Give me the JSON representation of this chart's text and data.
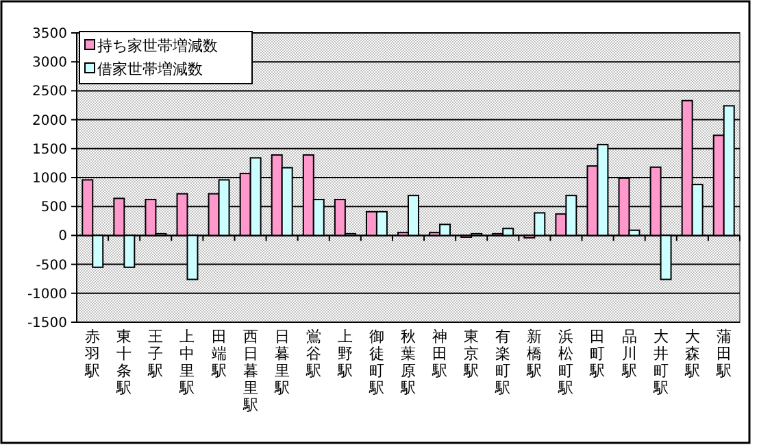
{
  "chart_data": {
    "type": "bar",
    "categories": [
      "赤羽駅",
      "東十条駅",
      "王子駅",
      "上中里駅",
      "田端駅",
      "西日暮里駅",
      "日暮里駅",
      "鴬谷駅",
      "上野駅",
      "御徒町駅",
      "秋葉原駅",
      "神田駅",
      "東京駅",
      "有楽町駅",
      "新橋駅",
      "浜松町駅",
      "田町駅",
      "品川駅",
      "大井町駅",
      "大森駅",
      "蒲田駅"
    ],
    "series": [
      {
        "name": "持ち家世帯増減数",
        "color": "#ff99cc",
        "values": [
          960,
          640,
          620,
          720,
          720,
          1070,
          1390,
          1390,
          620,
          410,
          50,
          50,
          -30,
          30,
          -40,
          370,
          1200,
          990,
          1180,
          2330,
          1730
        ]
      },
      {
        "name": "借家世帯増減数",
        "color": "#ccffff",
        "values": [
          -550,
          -550,
          30,
          -760,
          960,
          1340,
          1170,
          620,
          30,
          410,
          690,
          190,
          30,
          120,
          390,
          690,
          1570,
          90,
          -760,
          880,
          2240
        ]
      }
    ],
    "ylim": [
      -1500,
      3500
    ],
    "yticks": [
      -1500,
      -1000,
      -500,
      0,
      500,
      1000,
      1500,
      2000,
      2500,
      3000,
      3500
    ],
    "grid": "y",
    "legend": "top left"
  }
}
